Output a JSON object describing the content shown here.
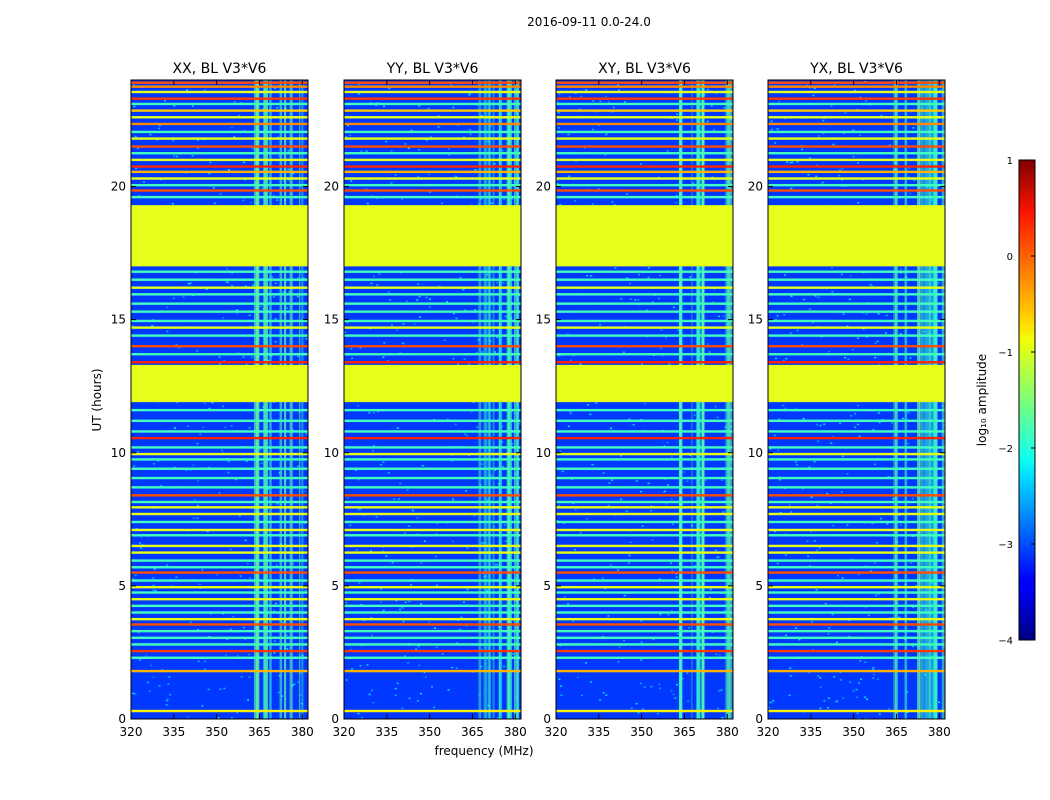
{
  "chart_data": {
    "type": "heatmap",
    "suptitle": "2016-09-11 0.0-24.0",
    "xlabel": "frequency (MHz)",
    "ylabel": "UT (hours)",
    "xlim": [
      320,
      382
    ],
    "ylim": [
      0,
      24
    ],
    "xticks": [
      320,
      335,
      350,
      365,
      380
    ],
    "yticks": [
      0,
      5,
      10,
      15,
      20
    ],
    "panels": [
      {
        "title": "XX, BL V3*V6"
      },
      {
        "title": "YY, BL V3*V6"
      },
      {
        "title": "XY, BL V3*V6"
      },
      {
        "title": "YX, BL V3*V6"
      }
    ],
    "colorbar": {
      "label": "log₁₀ amplitude",
      "range": [
        -4,
        1
      ],
      "ticks": [
        "1",
        "0",
        "−1",
        "−2",
        "−3",
        "−4"
      ],
      "colormap": "jet"
    },
    "background_level": -3.1,
    "flagged_blocks_hours": [
      [
        17.0,
        19.3
      ],
      [
        11.9,
        13.3
      ]
    ],
    "flagged_level": -1.0,
    "rfi_lines_hours": [
      {
        "t": 23.9,
        "level": 0
      },
      {
        "t": 23.75,
        "level": -0.3
      },
      {
        "t": 23.55,
        "level": -1
      },
      {
        "t": 23.3,
        "level": 0.1
      },
      {
        "t": 23.1,
        "level": -1.8
      },
      {
        "t": 22.85,
        "level": -0.6
      },
      {
        "t": 22.6,
        "level": -1
      },
      {
        "t": 22.35,
        "level": -0.3
      },
      {
        "t": 22.05,
        "level": -1.8
      },
      {
        "t": 21.8,
        "level": -1
      },
      {
        "t": 21.5,
        "level": 0
      },
      {
        "t": 21.25,
        "level": -1.8
      },
      {
        "t": 21.0,
        "level": -1
      },
      {
        "t": 20.75,
        "level": 0.2
      },
      {
        "t": 20.55,
        "level": -0.5
      },
      {
        "t": 20.3,
        "level": -1
      },
      {
        "t": 20.05,
        "level": -1.8
      },
      {
        "t": 19.85,
        "level": 0
      },
      {
        "t": 19.6,
        "level": -1.8
      },
      {
        "t": 16.8,
        "level": -1.8
      },
      {
        "t": 16.5,
        "level": -1.8
      },
      {
        "t": 16.2,
        "level": -1
      },
      {
        "t": 15.95,
        "level": -1.8
      },
      {
        "t": 15.6,
        "level": -1.8
      },
      {
        "t": 15.3,
        "level": -1.8
      },
      {
        "t": 14.95,
        "level": -1.8
      },
      {
        "t": 14.7,
        "level": -1
      },
      {
        "t": 14.4,
        "level": -1.8
      },
      {
        "t": 14.0,
        "level": 0
      },
      {
        "t": 13.7,
        "level": -1.8
      },
      {
        "t": 13.4,
        "level": 0.2
      },
      {
        "t": 11.6,
        "level": -1.8
      },
      {
        "t": 11.2,
        "level": -1.8
      },
      {
        "t": 10.8,
        "level": -1.8
      },
      {
        "t": 10.55,
        "level": 0.2
      },
      {
        "t": 10.2,
        "level": -1.8
      },
      {
        "t": 9.95,
        "level": -1
      },
      {
        "t": 9.75,
        "level": -1.8
      },
      {
        "t": 9.4,
        "level": -1.8
      },
      {
        "t": 9.05,
        "level": -1.8
      },
      {
        "t": 8.7,
        "level": -1.8
      },
      {
        "t": 8.4,
        "level": 0
      },
      {
        "t": 8.15,
        "level": -1.8
      },
      {
        "t": 7.95,
        "level": -1
      },
      {
        "t": 7.7,
        "level": -1
      },
      {
        "t": 7.4,
        "level": -1.8
      },
      {
        "t": 7.1,
        "level": -1
      },
      {
        "t": 6.9,
        "level": -1.8
      },
      {
        "t": 6.5,
        "level": -1
      },
      {
        "t": 6.25,
        "level": -1
      },
      {
        "t": 5.95,
        "level": -1.8
      },
      {
        "t": 5.7,
        "level": -1.8
      },
      {
        "t": 5.5,
        "level": 0
      },
      {
        "t": 5.2,
        "level": -1.8
      },
      {
        "t": 4.95,
        "level": -1
      },
      {
        "t": 4.75,
        "level": -1.8
      },
      {
        "t": 4.5,
        "level": -1
      },
      {
        "t": 4.25,
        "level": -1.8
      },
      {
        "t": 4.0,
        "level": -1.8
      },
      {
        "t": 3.75,
        "level": -1
      },
      {
        "t": 3.55,
        "level": 0
      },
      {
        "t": 3.3,
        "level": -1.8
      },
      {
        "t": 3.05,
        "level": -1.8
      },
      {
        "t": 2.8,
        "level": -1.8
      },
      {
        "t": 2.55,
        "level": 0.1
      },
      {
        "t": 2.3,
        "level": -1.8
      },
      {
        "t": 1.8,
        "level": -0.5
      },
      {
        "t": 0.3,
        "level": -0.8
      }
    ],
    "rfi_band_mhz": [
      363,
      381
    ],
    "rfi_band_level": -2.0
  }
}
